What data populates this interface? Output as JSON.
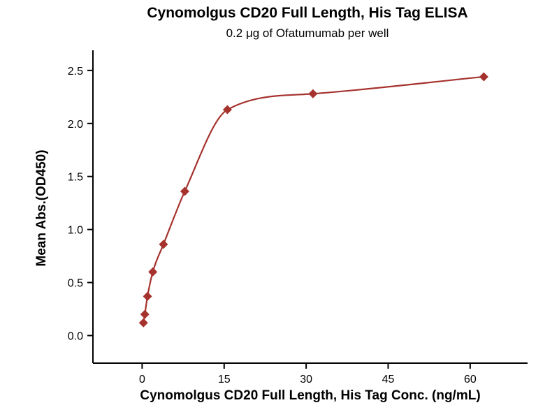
{
  "chart_data": {
    "type": "line",
    "title": "Cynomolgus CD20 Full Length, His Tag ELISA",
    "subtitle": "0.2 μg of Ofatumumab per well",
    "xlabel": "Cynomolgus CD20 Full Length, His Tag Conc. (ng/mL)",
    "ylabel": "Mean Abs.(OD450)",
    "x": [
      0.24,
      0.49,
      0.98,
      1.95,
      3.9,
      7.8,
      15.6,
      31.25,
      62.5
    ],
    "y": [
      0.12,
      0.2,
      0.37,
      0.6,
      0.86,
      1.36,
      2.13,
      2.28,
      2.44
    ],
    "xticks": [
      0,
      15,
      30,
      45,
      60
    ],
    "yticks": [
      0.0,
      0.5,
      1.0,
      1.5,
      2.0,
      2.5
    ],
    "xlim": [
      -9,
      70.5
    ],
    "ylim": [
      -0.26,
      2.69
    ],
    "series_color": "#a5322d",
    "marker": "diamond",
    "grid": false,
    "legend": false
  }
}
